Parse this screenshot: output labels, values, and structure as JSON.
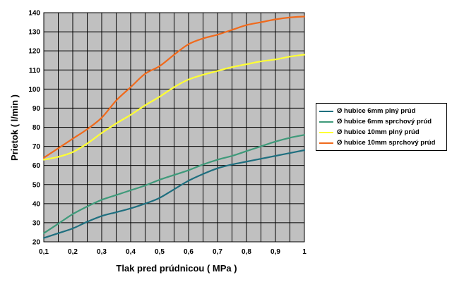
{
  "chart_data": {
    "type": "line",
    "title": "",
    "xlabel": "Tlak pred prúdnicou  ( MPa )",
    "ylabel": "Prietok  ( l/min )",
    "xlim": [
      0.1,
      1.0
    ],
    "ylim": [
      20,
      140
    ],
    "x_ticks": [
      0.1,
      0.2,
      0.3,
      0.4,
      0.5,
      0.6,
      0.7,
      0.8,
      0.9,
      1.0
    ],
    "x_tick_labels": [
      "0,1",
      "0,2",
      "0,3",
      "0,4",
      "0,5",
      "0,6",
      "0,7",
      "0,8",
      "0,9",
      "1"
    ],
    "y_ticks": [
      20,
      30,
      40,
      50,
      60,
      70,
      80,
      90,
      100,
      110,
      120,
      130,
      140
    ],
    "x_grid_step": 0.05,
    "grid": true,
    "plot_background": "#c0c0c0",
    "legend_position": "right",
    "series": [
      {
        "name": "Ø hubice 6mm plný prúd",
        "color": "#1f6f7f",
        "x": [
          0.1,
          0.15,
          0.2,
          0.25,
          0.3,
          0.35,
          0.4,
          0.45,
          0.5,
          0.55,
          0.6,
          0.65,
          0.7,
          0.75,
          0.8,
          0.85,
          0.9,
          0.95,
          1.0
        ],
        "y": [
          22,
          24.5,
          27,
          30.5,
          33.5,
          35.5,
          37.5,
          40,
          43,
          47.5,
          52,
          55.5,
          58.5,
          60.5,
          62,
          63.5,
          65,
          66.5,
          68
        ]
      },
      {
        "name": "Ø hubice 6mm sprchový prúd",
        "color": "#3f9a7a",
        "x": [
          0.1,
          0.15,
          0.2,
          0.25,
          0.3,
          0.35,
          0.4,
          0.45,
          0.5,
          0.55,
          0.6,
          0.65,
          0.7,
          0.75,
          0.8,
          0.85,
          0.9,
          0.95,
          1.0
        ],
        "y": [
          24.5,
          29.5,
          34.5,
          38.5,
          42,
          44.5,
          47,
          49.5,
          52.5,
          55,
          57.5,
          60.5,
          63,
          65,
          67.5,
          70,
          72.5,
          74.5,
          76
        ]
      },
      {
        "name": "Ø hubice 10mm plný prúd",
        "color": "#ffff33",
        "x": [
          0.1,
          0.15,
          0.2,
          0.25,
          0.3,
          0.35,
          0.4,
          0.45,
          0.5,
          0.55,
          0.6,
          0.65,
          0.7,
          0.75,
          0.8,
          0.85,
          0.9,
          0.95,
          1.0
        ],
        "y": [
          63,
          64.5,
          67,
          71.5,
          77,
          82,
          86.5,
          91.5,
          96,
          101,
          105,
          107.5,
          109.5,
          111.5,
          113,
          114.5,
          115.5,
          117,
          118
        ]
      },
      {
        "name": "Ø hubice 10mm sprchový prúd",
        "color": "#f06a1c",
        "x": [
          0.1,
          0.15,
          0.2,
          0.25,
          0.3,
          0.35,
          0.4,
          0.45,
          0.5,
          0.55,
          0.6,
          0.65,
          0.7,
          0.75,
          0.8,
          0.85,
          0.9,
          0.95,
          1.0
        ],
        "y": [
          64,
          69,
          74,
          79,
          85,
          94,
          101,
          108,
          112,
          118,
          123.5,
          126.5,
          128.5,
          131,
          133.5,
          135,
          136.5,
          137.5,
          138
        ]
      }
    ]
  }
}
